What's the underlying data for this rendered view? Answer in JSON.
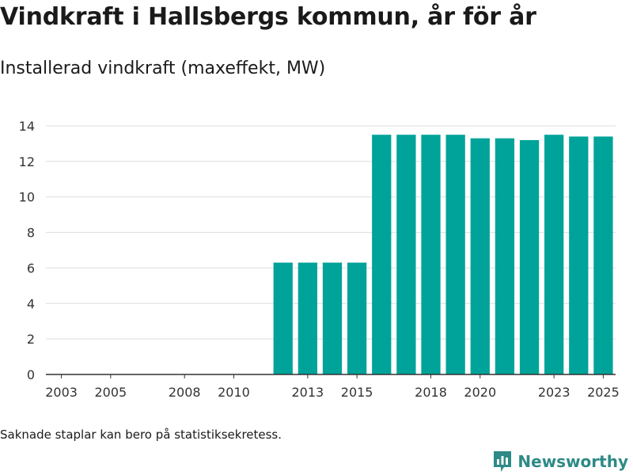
{
  "header": {
    "title": "Vindkraft i Hallsbergs kommun, år för år",
    "subtitle": "Installerad vindkraft (maxeffekt, MW)"
  },
  "footer": {
    "note": "Saknade staplar kan bero på statistiksekretess.",
    "brand": "Newsworthy",
    "brand_icon": "newsworthy-logo-icon"
  },
  "colors": {
    "bar": "#00a399",
    "grid": "#dddddd",
    "axis": "#333333",
    "brand": "#2d8a86"
  },
  "chart_data": {
    "type": "bar",
    "categories": [
      "2003",
      "2004",
      "2005",
      "2006",
      "2007",
      "2008",
      "2009",
      "2010",
      "2011",
      "2012",
      "2013",
      "2014",
      "2015",
      "2016",
      "2017",
      "2018",
      "2019",
      "2020",
      "2021",
      "2022",
      "2023",
      "2024",
      "2025"
    ],
    "values": [
      0,
      0,
      0,
      0,
      0,
      0,
      0,
      0,
      0,
      6.3,
      6.3,
      6.3,
      6.3,
      13.5,
      13.5,
      13.5,
      13.5,
      13.3,
      13.3,
      13.2,
      13.5,
      13.4,
      13.4
    ],
    "x_tick_labels": [
      "2003",
      "2005",
      "2008",
      "2010",
      "2013",
      "2015",
      "2018",
      "2020",
      "2023",
      "2025"
    ],
    "y_ticks": [
      0,
      2,
      4,
      6,
      8,
      10,
      12,
      14
    ],
    "ylim": [
      0,
      14
    ],
    "grid": true,
    "title": "Vindkraft i Hallsbergs kommun, år för år",
    "xlabel": "",
    "ylabel": ""
  }
}
